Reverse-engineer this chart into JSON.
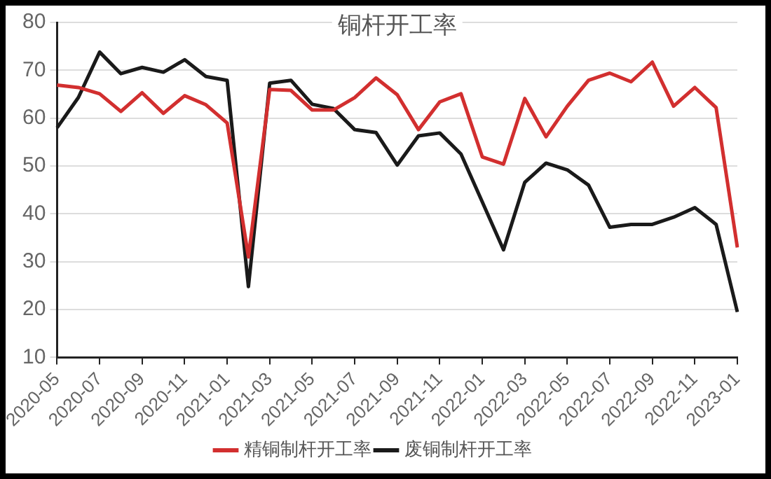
{
  "chart_data": {
    "type": "line",
    "title": "铜杆开工率",
    "categories": [
      "2020-05",
      null,
      "2020-07",
      null,
      "2020-09",
      null,
      "2020-11",
      null,
      "2021-01",
      null,
      "2021-03",
      null,
      "2021-05",
      null,
      "2021-07",
      null,
      "2021-09",
      null,
      "2021-11",
      null,
      "2022-01",
      null,
      "2022-03",
      null,
      "2022-05",
      null,
      "2022-07",
      null,
      "2022-09",
      null,
      "2022-11",
      null,
      "2023-01"
    ],
    "series": [
      {
        "name": "精铜制杆开工率",
        "color": "#d22f2f",
        "values": [
          66.9,
          66.4,
          65.1,
          61.4,
          65.3,
          61,
          64.7,
          62.8,
          59,
          31,
          66,
          65.8,
          61.7,
          61.7,
          64.3,
          68.4,
          64.9,
          57.6,
          63.4,
          65.1,
          51.9,
          50.4,
          64.1,
          56.1,
          62.5,
          67.9,
          69.4,
          67.6,
          71.7,
          62.5,
          66.4,
          62.2,
          33
        ]
      },
      {
        "name": "废铜制杆开工率",
        "color": "#1a1a1a",
        "values": [
          58,
          64.3,
          73.8,
          69.3,
          70.6,
          69.6,
          72.2,
          68.7,
          67.9,
          24.8,
          67.3,
          67.9,
          62.9,
          62,
          57.6,
          57,
          50.2,
          56.3,
          56.9,
          52.5,
          42.5,
          32.5,
          46.6,
          50.6,
          49.2,
          46,
          37.2,
          37.8,
          37.8,
          39.3,
          41.3,
          37.8,
          19.5
        ]
      }
    ],
    "ylim": [
      10,
      80
    ],
    "yticks": [
      10,
      20,
      30,
      40,
      50,
      60,
      70,
      80
    ],
    "grid": "y",
    "legend": "bottom",
    "marker": "none",
    "line_style": "solid"
  }
}
